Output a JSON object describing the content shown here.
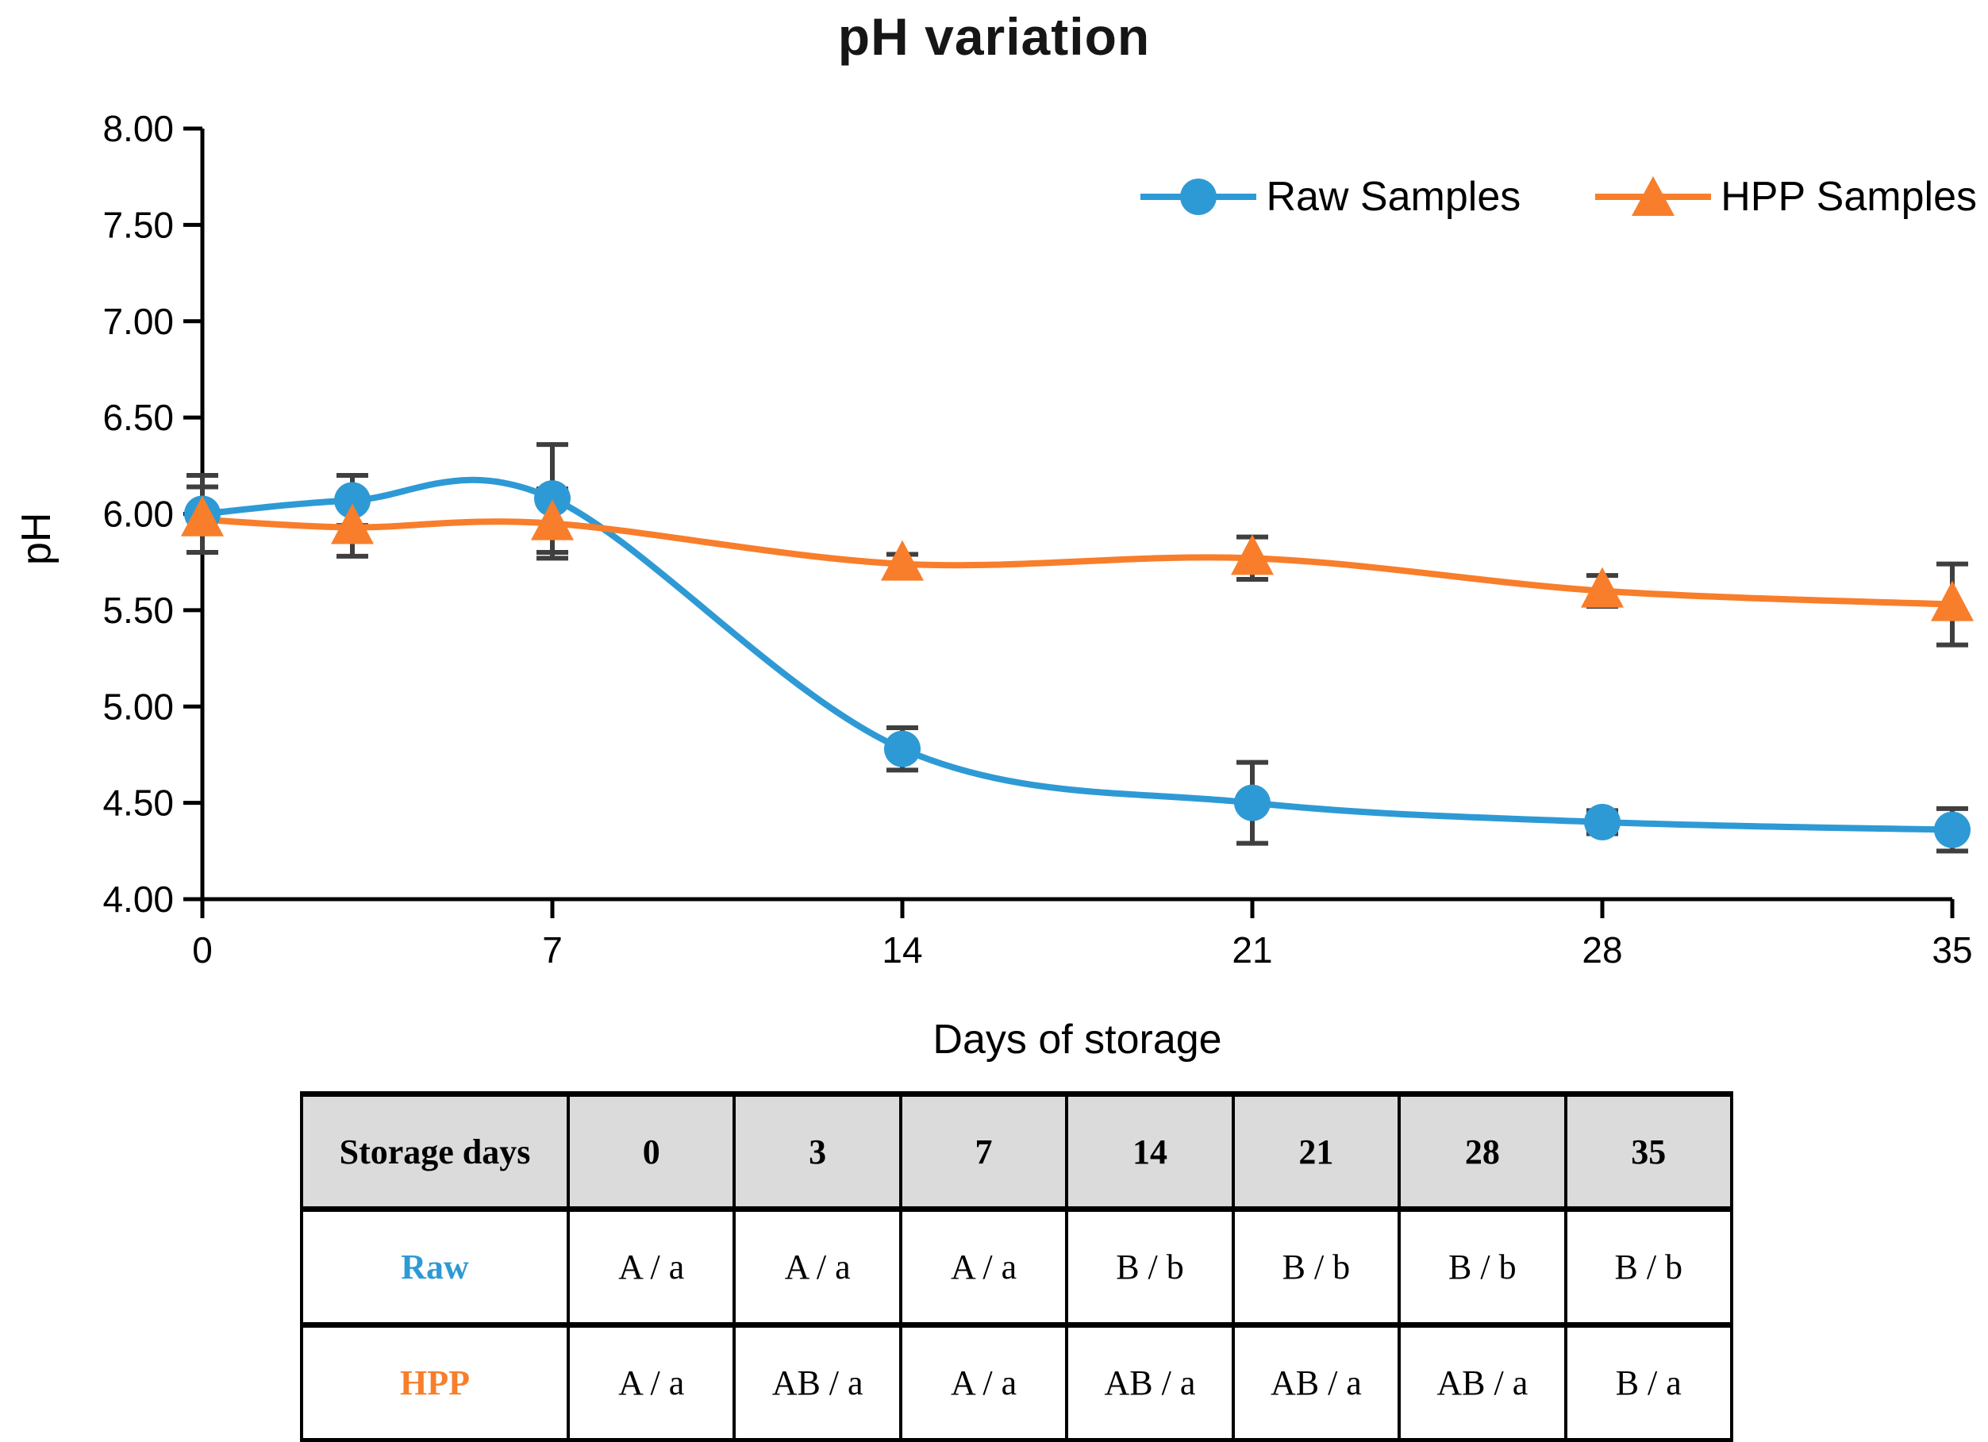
{
  "figure": {
    "title": "pH variation",
    "y_axis_title": "pH",
    "x_axis_title": "Days of storage"
  },
  "chart_data": {
    "type": "line",
    "title": "pH variation",
    "xlabel": "Days of storage",
    "ylabel": "pH",
    "x": [
      0,
      3,
      7,
      14,
      21,
      28,
      35
    ],
    "xlim": [
      0,
      35
    ],
    "ylim": [
      4.0,
      8.0
    ],
    "xticks": [
      0,
      7,
      14,
      21,
      28,
      35
    ],
    "xtick_labels": [
      "0",
      "7",
      "14",
      "21",
      "28",
      "35"
    ],
    "yticks": [
      4.0,
      4.5,
      5.0,
      5.5,
      6.0,
      6.5,
      7.0,
      7.5,
      8.0
    ],
    "ytick_labels": [
      "4.00",
      "4.50",
      "5.00",
      "5.50",
      "6.00",
      "6.50",
      "7.00",
      "7.50",
      "8.00"
    ],
    "grid": false,
    "legend_position": "top-right-inside",
    "line_style": "smooth",
    "axis_color": "#000000",
    "errorbar_color": "#3F3F3F",
    "series": [
      {
        "name": "Raw Samples",
        "marker": "circle",
        "color": "#2E9AD5",
        "values": [
          6.0,
          6.07,
          6.08,
          4.78,
          4.5,
          4.4,
          4.36
        ],
        "errors": [
          0.2,
          0.13,
          0.28,
          0.11,
          0.21,
          0.06,
          0.11
        ]
      },
      {
        "name": "HPP Samples",
        "marker": "triangle",
        "color": "#F87E2B",
        "values": [
          5.97,
          5.93,
          5.95,
          5.74,
          5.77,
          5.6,
          5.53
        ],
        "errors": [
          0.17,
          0.15,
          0.18,
          0.05,
          0.11,
          0.08,
          0.21
        ]
      }
    ]
  },
  "table": {
    "header_bg": "#DBDBDB",
    "header": [
      "Storage days",
      "0",
      "3",
      "7",
      "14",
      "21",
      "28",
      "35"
    ],
    "rows": [
      {
        "label": "Raw",
        "color": "#2E9AD5",
        "cells": [
          "A / a",
          "A / a",
          "A / a",
          "B / b",
          "B / b",
          "B / b",
          "B / b"
        ]
      },
      {
        "label": "HPP",
        "color": "#F87E2B",
        "cells": [
          "A / a",
          "AB / a",
          "A / a",
          "AB / a",
          "AB / a",
          "AB / a",
          "B / a"
        ]
      }
    ]
  }
}
